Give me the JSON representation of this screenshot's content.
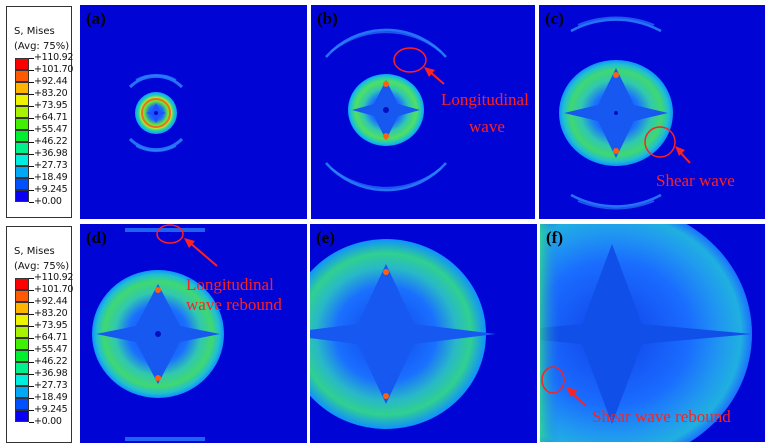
{
  "legends": [
    {
      "title_line1": "S, Mises",
      "title_line2": "(Avg: 75%)",
      "values": [
        "+110.92",
        "+101.70",
        "+92.44",
        "+83.20",
        "+73.95",
        "+64.71",
        "+55.47",
        "+46.22",
        "+36.98",
        "+27.73",
        "+18.49",
        "+9.245",
        "+0.00"
      ],
      "colors": [
        "#ff0000",
        "#ff5a00",
        "#ffb400",
        "#eef400",
        "#a8f200",
        "#40f000",
        "#00ee30",
        "#00f08c",
        "#00eedf",
        "#00a8f6",
        "#0050ff",
        "#0a00f4"
      ]
    },
    {
      "title_line1": "S, Mises",
      "title_line2": "(Avg: 75%)",
      "values": [
        "+110.92",
        "+101.70",
        "+92.44",
        "+83.20",
        "+73.95",
        "+64.71",
        "+55.47",
        "+46.22",
        "+36.98",
        "+27.73",
        "+18.49",
        "+9.245",
        "+0.00"
      ],
      "colors": [
        "#ff0000",
        "#ff5a00",
        "#ffb400",
        "#eef400",
        "#a8f200",
        "#40f000",
        "#00ee30",
        "#00f08c",
        "#00eedf",
        "#00a8f6",
        "#0050ff",
        "#0a00f4"
      ]
    }
  ],
  "panels": [
    {
      "label": "(a)",
      "annotations": []
    },
    {
      "label": "(b)",
      "annotations": [
        "Longitudinal",
        "wave"
      ]
    },
    {
      "label": "(c)",
      "annotations": [
        "Shear wave"
      ]
    },
    {
      "label": "(d)",
      "annotations": [
        "Longitudinal",
        "wave rebound"
      ]
    },
    {
      "label": "(e)",
      "annotations": []
    },
    {
      "label": "(f)",
      "annotations": [
        "Shear wave rebound"
      ]
    }
  ],
  "colors": {
    "background_blue": "#0005d6",
    "annotation_red": "#ff2020"
  }
}
